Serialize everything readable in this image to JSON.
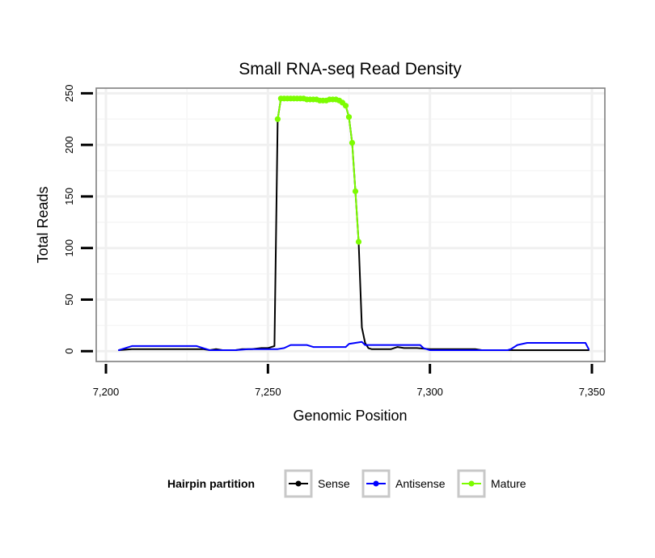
{
  "chart_data": {
    "type": "line",
    "title": "Small RNA-seq Read Density",
    "xlabel": "Genomic Position",
    "ylabel": "Total Reads",
    "xlim": [
      7197,
      7354
    ],
    "ylim": [
      -10,
      255
    ],
    "x_ticks": [
      7200,
      7250,
      7300,
      7350
    ],
    "x_tick_labels": [
      "7,200",
      "7,250",
      "7,300",
      "7,350"
    ],
    "y_ticks": [
      0,
      50,
      100,
      150,
      200,
      250
    ],
    "y_tick_labels": [
      "0",
      "50",
      "100",
      "150",
      "200",
      "250"
    ],
    "grid": true,
    "legend": {
      "title": "Hairpin partition",
      "position": "bottom",
      "entries": [
        {
          "name": "Sense",
          "color": "#000000"
        },
        {
          "name": "Antisense",
          "color": "#0000ff"
        },
        {
          "name": "Mature",
          "color": "#7cfc00"
        }
      ]
    },
    "series": [
      {
        "name": "Sense",
        "color": "#000000",
        "marker": false,
        "x": [
          7204,
          7208,
          7220,
          7230,
          7232,
          7234,
          7236,
          7240,
          7242,
          7245,
          7248,
          7250,
          7252,
          7253,
          7254,
          7255,
          7256,
          7258,
          7260,
          7262,
          7264,
          7266,
          7268,
          7270,
          7272,
          7273,
          7274,
          7275,
          7276,
          7277,
          7278,
          7279,
          7280,
          7281,
          7282,
          7284,
          7288,
          7290,
          7292,
          7296,
          7300,
          7305,
          7310,
          7314,
          7316,
          7320,
          7330,
          7340,
          7349
        ],
        "y": [
          1,
          2,
          2,
          2,
          1,
          2,
          1,
          1,
          2,
          2,
          3,
          3,
          5,
          225,
          245,
          245,
          245,
          245,
          245,
          244,
          244,
          243,
          243,
          244,
          243,
          241,
          238,
          227,
          202,
          155,
          106,
          23,
          8,
          3,
          2,
          2,
          2,
          4,
          3,
          3,
          2,
          2,
          2,
          2,
          1,
          1,
          1,
          1,
          1
        ]
      },
      {
        "name": "Antisense",
        "color": "#0000ff",
        "marker": false,
        "x": [
          7204,
          7206,
          7208,
          7220,
          7228,
          7230,
          7232,
          7240,
          7244,
          7250,
          7253,
          7255,
          7257,
          7262,
          7264,
          7270,
          7274,
          7275,
          7279,
          7280,
          7297,
          7298,
          7300,
          7315,
          7320,
          7324,
          7325,
          7327,
          7330,
          7335,
          7340,
          7347,
          7348,
          7349
        ],
        "y": [
          1,
          3,
          5,
          5,
          5,
          3,
          1,
          1,
          2,
          2,
          2,
          3,
          6,
          6,
          4,
          4,
          4,
          7,
          9,
          6,
          6,
          3,
          1,
          1,
          1,
          1,
          2,
          6,
          8,
          8,
          8,
          8,
          8,
          2
        ]
      },
      {
        "name": "Mature",
        "color": "#7cfc00",
        "marker": true,
        "x": [
          7253,
          7254,
          7255,
          7256,
          7257,
          7258,
          7259,
          7260,
          7261,
          7262,
          7263,
          7264,
          7265,
          7266,
          7267,
          7268,
          7269,
          7270,
          7271,
          7272,
          7273,
          7274,
          7275,
          7276,
          7277,
          7278
        ],
        "y": [
          225,
          245,
          245,
          245,
          245,
          245,
          245,
          245,
          245,
          244,
          244,
          244,
          244,
          243,
          243,
          243,
          244,
          244,
          244,
          243,
          241,
          238,
          227,
          202,
          155,
          106
        ]
      }
    ]
  }
}
